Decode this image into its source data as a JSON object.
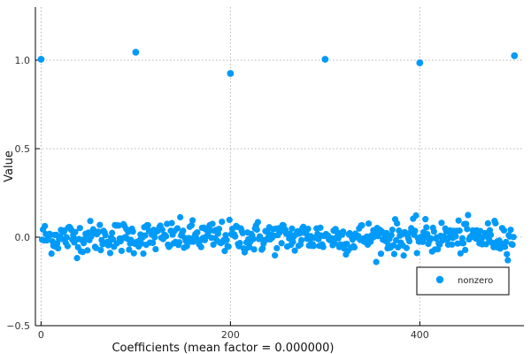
{
  "chart_data": {
    "type": "scatter",
    "xlabel": "Coefficients (mean factor = 0.000000)",
    "ylabel": "Value",
    "xlim": [
      -6,
      510
    ],
    "ylim": [
      -0.5,
      1.3
    ],
    "x_ticks": [
      0,
      200,
      400
    ],
    "x_tick_labels": [
      "0",
      "200",
      "400"
    ],
    "y_ticks": [
      -0.5,
      0.0,
      0.5,
      1.0
    ],
    "y_tick_labels": [
      "−0.5",
      "0.0",
      "0.5",
      "1.0"
    ],
    "grid": true,
    "legend_position": "bottom-right",
    "series": [
      {
        "name": "nonzero",
        "color": "#009af9",
        "points": {
          "x": [
            0,
            100,
            200,
            300,
            400,
            500
          ],
          "y": [
            1.005,
            1.045,
            0.925,
            1.005,
            0.985,
            1.025
          ]
        },
        "noise": {
          "x_start": 1,
          "x_end": 500,
          "center": 0.0,
          "spread": 0.045,
          "max_abs": 0.14,
          "excluded_x": [
            100,
            200,
            300,
            400,
            500
          ]
        }
      }
    ]
  }
}
